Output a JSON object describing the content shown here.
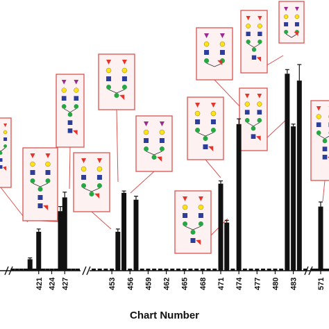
{
  "chart_data": {
    "type": "bar",
    "xlabel": "Chart Number",
    "ylabel": "",
    "ylim": [
      0,
      100
    ],
    "tick_labels": [
      "421",
      "424",
      "427",
      "453",
      "456",
      "459",
      "462",
      "465",
      "468",
      "471",
      "474",
      "477",
      "480",
      "483",
      "571"
    ],
    "bars": [
      {
        "x": 419,
        "value": 5,
        "err": 0.6
      },
      {
        "x": 421,
        "value": 17,
        "err": 1.2
      },
      {
        "x": 426,
        "value": 26,
        "err": 2.0
      },
      {
        "x": 427,
        "value": 32,
        "err": 2.3
      },
      {
        "x": 454,
        "value": 17,
        "err": 1.2
      },
      {
        "x": 455,
        "value": 34,
        "err": 0.8
      },
      {
        "x": 457,
        "value": 31,
        "err": 1.5
      },
      {
        "x": 471,
        "value": 38,
        "err": 1.2
      },
      {
        "x": 472,
        "value": 21,
        "err": 1.0
      },
      {
        "x": 474,
        "value": 64,
        "err": 2.3
      },
      {
        "x": 482,
        "value": 86,
        "err": 1.8
      },
      {
        "x": 483,
        "value": 63,
        "err": 1.0
      },
      {
        "x": 484,
        "value": 83,
        "err": 7.0
      },
      {
        "x": 571,
        "value": 28,
        "err": 2.0
      }
    ],
    "colors": {
      "bar": "#111111",
      "callout_border": "#d9534f",
      "callout_fill": "#fdf1f1",
      "glcnac": "#2c3e9a",
      "mannose": "#27a644",
      "galactose": "#ffe21a",
      "fucose": "#e5352b",
      "sialic_acid": "#9a2b8f"
    },
    "icons": [
      "glycan-structure-icon"
    ]
  }
}
